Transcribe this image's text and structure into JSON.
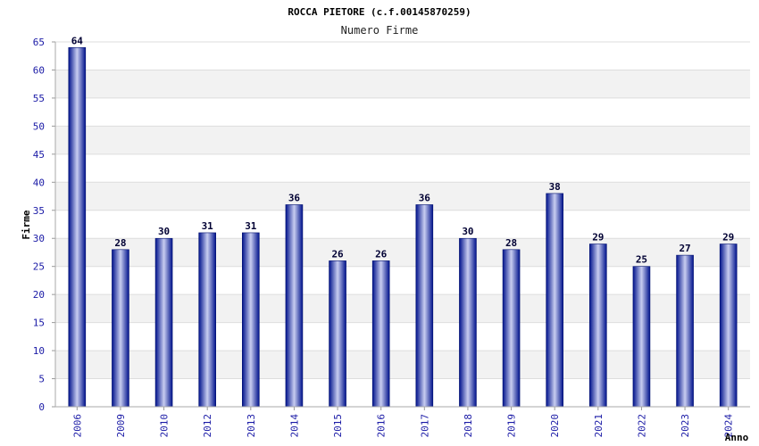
{
  "chart_data": {
    "type": "bar",
    "title": "ROCCA PIETORE (c.f.00145870259)",
    "subtitle": "Numero Firme",
    "xlabel": "Anno",
    "ylabel": "Firme",
    "ylim": [
      0,
      65
    ],
    "yticks": [
      0,
      5,
      10,
      15,
      20,
      25,
      30,
      35,
      40,
      45,
      50,
      55,
      60,
      65
    ],
    "grid": true,
    "categories": [
      "2006",
      "2009",
      "2010",
      "2012",
      "2013",
      "2014",
      "2015",
      "2016",
      "2017",
      "2018",
      "2019",
      "2020",
      "2021",
      "2022",
      "2023",
      "2024"
    ],
    "values": [
      64,
      28,
      30,
      31,
      31,
      36,
      26,
      26,
      36,
      30,
      28,
      38,
      29,
      25,
      27,
      29
    ],
    "colors": {
      "bar_dark": "#00128c",
      "bar_light": "#c8cdf0",
      "band": "#f2f2f2",
      "tick": "#1a1aa6"
    }
  }
}
